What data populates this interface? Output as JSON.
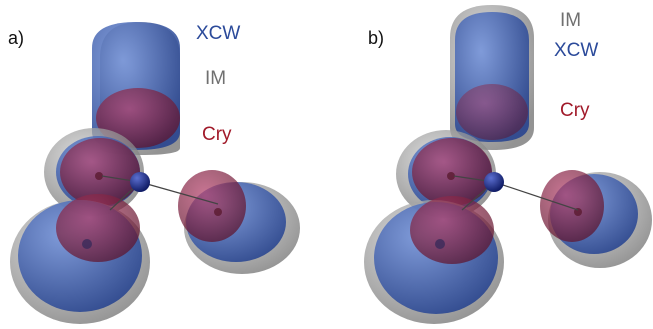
{
  "panels": [
    {
      "label": "a)",
      "legend": [
        {
          "text": "XCW",
          "color": "#2b4a9a"
        },
        {
          "text": "IM",
          "color": "#707070"
        },
        {
          "text": "Cry",
          "color": "#a11a2a"
        }
      ]
    },
    {
      "label": "b)",
      "legend": [
        {
          "text": "IM",
          "color": "#707070"
        },
        {
          "text": "XCW",
          "color": "#2b4a9a"
        },
        {
          "text": "Cry",
          "color": "#a11a2a"
        }
      ]
    }
  ],
  "colors": {
    "im_gray": "#9a9a9a",
    "xcw_blue": "#3f66c0",
    "cry_red": "#8a1e3a",
    "atom_center": "#2a3a9a"
  }
}
